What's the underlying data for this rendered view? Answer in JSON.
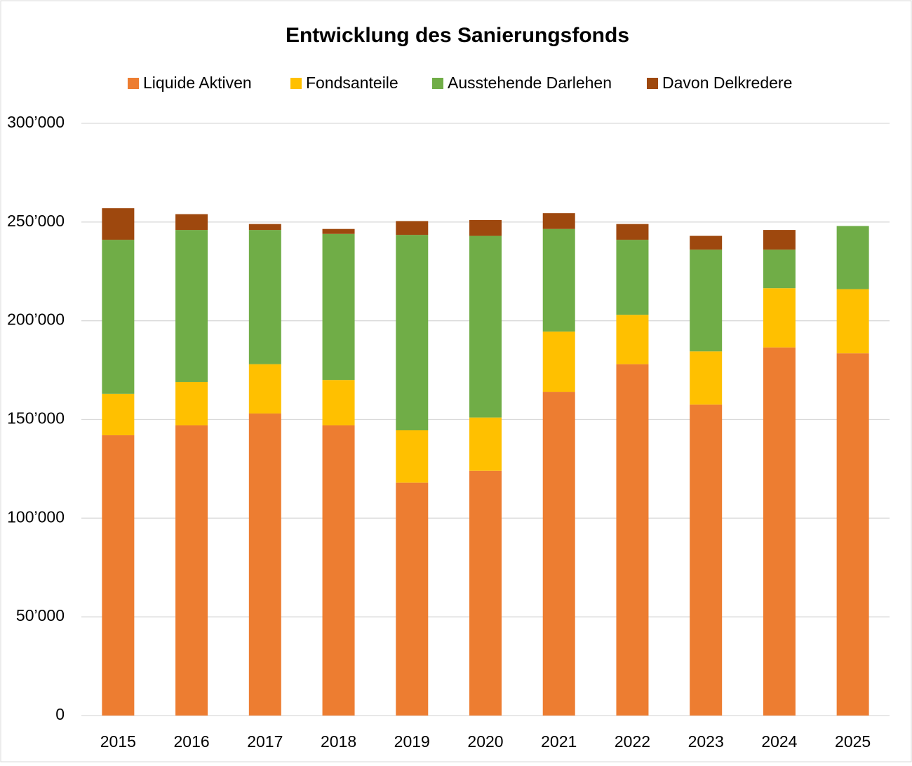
{
  "chart_data": {
    "type": "stacked_bar",
    "title": "Entwicklung des Sanierungsfonds",
    "categories": [
      "2015",
      "2016",
      "2017",
      "2018",
      "2019",
      "2020",
      "2021",
      "2022",
      "2023",
      "2024",
      "2025"
    ],
    "series": [
      {
        "name": "Liquide Aktiven",
        "color": "#ed7d31",
        "values": [
          142000,
          147000,
          153000,
          147000,
          118000,
          124000,
          164000,
          178000,
          157500,
          186500,
          183500
        ]
      },
      {
        "name": "Fondsanteile",
        "color": "#ffc000",
        "values": [
          21000,
          22000,
          25000,
          23000,
          26500,
          27000,
          30500,
          25000,
          27000,
          30000,
          32500
        ]
      },
      {
        "name": "Ausstehende Darlehen",
        "color": "#70ad47",
        "values": [
          78000,
          77000,
          68000,
          74000,
          99000,
          92000,
          52000,
          38000,
          51500,
          19500,
          32000
        ]
      },
      {
        "name": "Davon Delkredere",
        "color": "#9e480e",
        "values": [
          16000,
          8000,
          3000,
          2500,
          7000,
          8000,
          8000,
          8000,
          7000,
          10000,
          0
        ]
      }
    ],
    "ylim": [
      0,
      300000
    ],
    "yticks": [
      0,
      {
        "value": 50000,
        "label": "50’000"
      },
      {
        "value": 100000,
        "label": "100’000"
      },
      {
        "value": 150000,
        "label": "150’000"
      },
      {
        "value": 200000,
        "label": "200’000"
      },
      {
        "value": 250000,
        "label": "250’000"
      },
      {
        "value": 300000,
        "label": "300’000"
      }
    ],
    "grid": true,
    "legend": "top"
  }
}
